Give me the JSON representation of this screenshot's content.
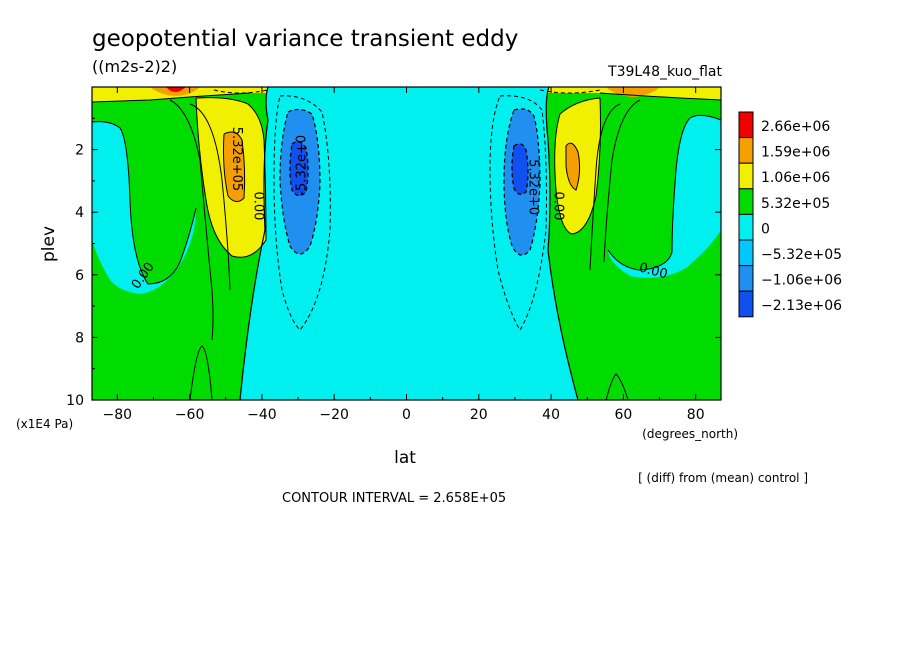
{
  "chart_data": {
    "type": "contour",
    "title": "geopotential variance transient eddy",
    "units": "((m2s-2)2)",
    "run_label": "T39L48_kuo_flat",
    "xlabel": "lat",
    "x_unit_label": "(degrees_north)",
    "ylabel": "plev",
    "y_unit_label": "(x1E4 Pa)",
    "xlim": [
      -87,
      87
    ],
    "ylim": [
      10,
      0
    ],
    "x_ticks": [
      -80,
      -60,
      -40,
      -20,
      0,
      20,
      40,
      60,
      80
    ],
    "y_ticks": [
      2,
      4,
      6,
      8,
      10
    ],
    "diff_note": "[ (diff) from (mean) control ]",
    "contour_interval_text": "CONTOUR INTERVAL = 2.658E+05",
    "colorbar": {
      "levels": [
        "2.66e+06",
        "1.59e+06",
        "1.06e+06",
        "5.32e+05",
        "0",
        "−5.32e+05",
        "−1.06e+06",
        "−2.13e+06"
      ],
      "colors": [
        "#f00000",
        "#f5a000",
        "#f0f000",
        "#00dc00",
        "#00f0f0",
        "#00c8ff",
        "#2090f0",
        "#1050f0"
      ]
    },
    "contour_labels": [
      {
        "text": "0.00",
        "lon": -72,
        "p": 6.1,
        "rot": -55
      },
      {
        "text": "5.32e+05",
        "lon": -48,
        "p": 2.3,
        "rot": 90
      },
      {
        "text": "0.00",
        "lon": -42,
        "p": 3.8,
        "rot": 90
      },
      {
        "text": "-5.32e+0",
        "lon": -28,
        "p": 2.5,
        "rot": -90
      },
      {
        "text": "5.32e+0",
        "lon": 34,
        "p": 3.2,
        "rot": 90
      },
      {
        "text": "0.00",
        "lon": 41,
        "p": 3.8,
        "rot": 90
      },
      {
        "text": "0.00",
        "lon": 68,
        "p": 6.0,
        "rot": 15
      }
    ]
  }
}
